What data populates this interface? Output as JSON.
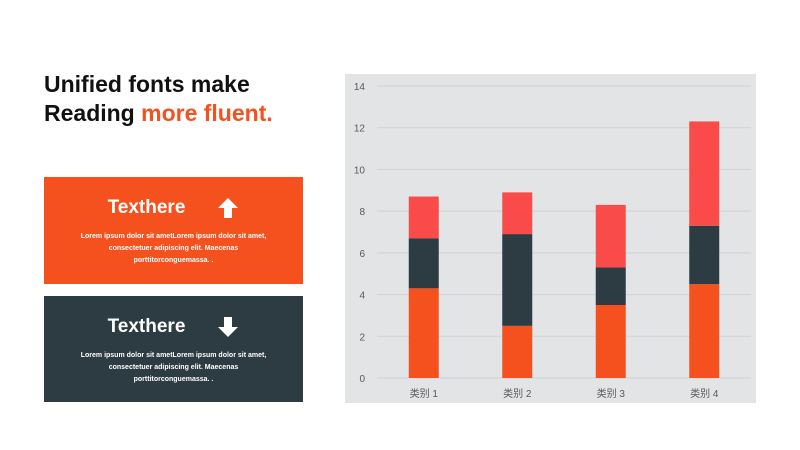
{
  "headline": {
    "line1": "Unified fonts make",
    "line2_prefix": "Reading ",
    "line2_accent": "more fluent."
  },
  "cards": [
    {
      "title": "Texthere",
      "icon": "arrow-up-icon",
      "body": "Lorem ipsum dolor sit ametLorem ipsum dolor sit amet, consectetuer adipiscing elit. Maecenas porttitorconguemassa. ."
    },
    {
      "title": "Texthere",
      "icon": "arrow-down-icon",
      "body": "Lorem ipsum dolor sit ametLorem ipsum dolor sit amet, consectetuer adipiscing elit. Maecenas porttitorconguemassa. ."
    }
  ],
  "colors": {
    "accent": "#f4511e",
    "dark": "#2d3b43",
    "red": "#fa4b4b",
    "chart_bg": "#e3e4e6"
  },
  "chart_data": {
    "type": "bar",
    "stacked": true,
    "categories": [
      "类别 1",
      "类别 2",
      "类别 3",
      "类别 4"
    ],
    "series": [
      {
        "values": [
          4.3,
          2.5,
          3.5,
          4.5
        ],
        "color": "#f4511e"
      },
      {
        "values": [
          2.4,
          4.4,
          1.8,
          2.8
        ],
        "color": "#2d3b43"
      },
      {
        "values": [
          2.0,
          2.0,
          3.0,
          5.0
        ],
        "color": "#fa4b4b"
      }
    ],
    "yticks": [
      0,
      2,
      4,
      6,
      8,
      10,
      12,
      14
    ],
    "ylim": [
      0,
      14
    ],
    "grid": true,
    "legend": "none"
  }
}
